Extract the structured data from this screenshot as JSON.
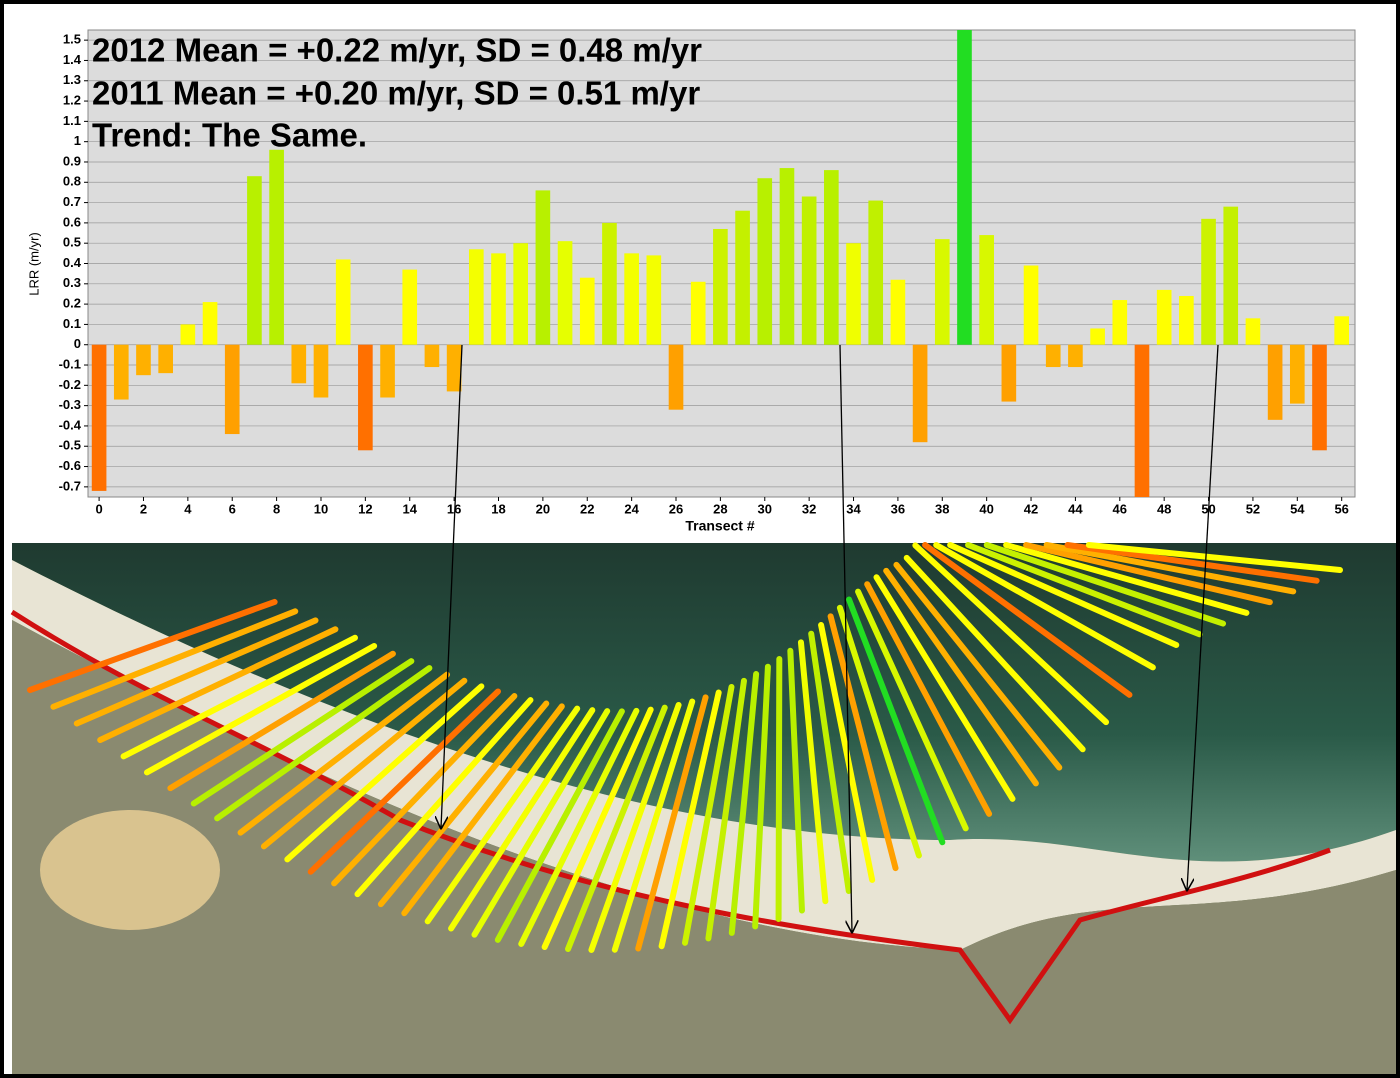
{
  "chart_data": {
    "type": "bar",
    "annotations": [
      "2012 Mean = +0.22 m/yr, SD = 0.48 m/yr",
      "2011 Mean = +0.20 m/yr, SD = 0.51 m/yr",
      "Trend:  The Same."
    ],
    "xlabel": "Transect #",
    "ylabel": "LRR (m/yr)",
    "x": [
      0,
      1,
      2,
      3,
      4,
      5,
      6,
      7,
      8,
      9,
      10,
      11,
      12,
      13,
      14,
      15,
      16,
      17,
      18,
      19,
      20,
      21,
      22,
      23,
      24,
      25,
      26,
      27,
      28,
      29,
      30,
      31,
      32,
      33,
      34,
      35,
      36,
      37,
      38,
      39,
      40,
      41,
      42,
      43,
      44,
      45,
      46,
      47,
      48,
      49,
      50,
      51,
      52,
      53,
      54,
      55,
      56
    ],
    "values": [
      -0.72,
      -0.27,
      -0.15,
      -0.14,
      0.1,
      0.21,
      -0.44,
      0.83,
      0.96,
      -0.19,
      -0.26,
      0.42,
      -0.52,
      -0.26,
      0.37,
      -0.11,
      -0.23,
      0.47,
      0.45,
      0.5,
      0.76,
      0.51,
      0.33,
      0.6,
      0.45,
      0.44,
      -0.32,
      0.31,
      0.57,
      0.66,
      0.82,
      0.87,
      0.73,
      0.86,
      0.5,
      0.71,
      0.32,
      -0.48,
      0.52,
      1.55,
      0.54,
      -0.28,
      0.39,
      -0.11,
      -0.11,
      0.08,
      0.22,
      -0.75,
      0.27,
      0.24,
      0.62,
      0.68,
      0.13,
      -0.37,
      -0.29,
      -0.52,
      0.14
    ],
    "colors": [
      "#ff7000",
      "#ffb000",
      "#ffb000",
      "#ffb000",
      "#ffff00",
      "#ffff00",
      "#ffa000",
      "#b8f000",
      "#b8f000",
      "#ffb000",
      "#ffb000",
      "#ffff00",
      "#ff7000",
      "#ffb000",
      "#ffff00",
      "#ffb000",
      "#ffb000",
      "#f4ff00",
      "#f4ff00",
      "#e6ff00",
      "#b8f000",
      "#e6ff00",
      "#ffff00",
      "#ccf200",
      "#f4ff00",
      "#f4ff00",
      "#ffa000",
      "#ffff00",
      "#ccf200",
      "#c4f000",
      "#b8f000",
      "#b8f000",
      "#c0f000",
      "#b8f000",
      "#f0ff00",
      "#c0f000",
      "#ffff00",
      "#ffa000",
      "#d8f800",
      "#22dd22",
      "#d8f800",
      "#ffa000",
      "#ffff00",
      "#ffb000",
      "#ffb000",
      "#ffff00",
      "#ffff00",
      "#ff7000",
      "#ffff00",
      "#ffff00",
      "#ccf200",
      "#c4f000",
      "#ffff00",
      "#ffa000",
      "#ffb000",
      "#ff7000",
      "#ffff00"
    ],
    "xlim": [
      -0.5,
      56.6
    ],
    "ylim": [
      -0.75,
      1.55
    ],
    "xticks": [
      0,
      2,
      4,
      6,
      8,
      10,
      12,
      14,
      16,
      18,
      20,
      22,
      24,
      26,
      28,
      30,
      32,
      34,
      36,
      38,
      40,
      42,
      44,
      46,
      48,
      50,
      52,
      54,
      56
    ],
    "yticks": [
      -0.7,
      -0.6,
      -0.5,
      -0.4,
      -0.3,
      -0.2,
      -0.1,
      0,
      0.1,
      0.2,
      0.3,
      0.4,
      0.5,
      0.6,
      0.7,
      0.8,
      0.9,
      1,
      1.1,
      1.2,
      1.3,
      1.4,
      1.5
    ],
    "grid": true
  }
}
